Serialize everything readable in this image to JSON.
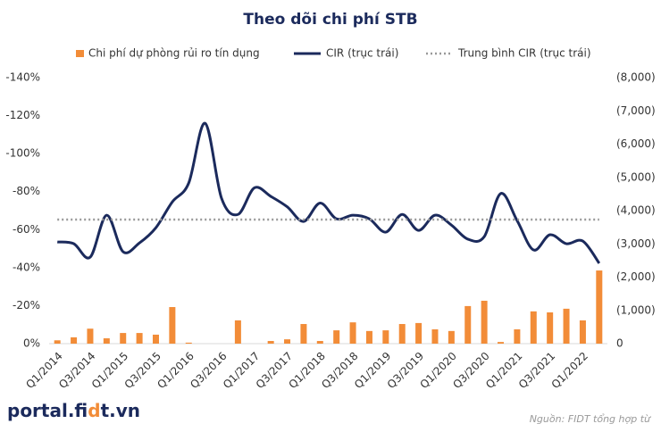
{
  "chart_data": {
    "type": "bar-line",
    "title": "Theo dõi chi phí STB",
    "source": "Nguồn: FIDT tổng hợp từ",
    "logo": [
      "portal.fi",
      "d",
      "t.vn"
    ],
    "categories": [
      "Q1/2014",
      null,
      "Q3/2014",
      null,
      "Q1/2015",
      null,
      "Q3/2015",
      null,
      "Q1/2016",
      null,
      "Q3/2016",
      null,
      "Q1/2017",
      null,
      "Q3/2017",
      null,
      "Q1/2018",
      null,
      "Q3/2018",
      null,
      "Q1/2019",
      null,
      "Q3/2019",
      null,
      "Q1/2020",
      null,
      "Q3/2020",
      null,
      "Q1/2021",
      null,
      "Q3/2021",
      null,
      "Q1/2022",
      null
    ],
    "series": [
      {
        "name": "Chi phí dự phòng rủi ro tín dụng",
        "type": "bar",
        "axis": "y2",
        "color": "#f28c38",
        "values": [
          -100,
          -190,
          -450,
          -160,
          -320,
          -320,
          -270,
          -1100,
          -30,
          0,
          0,
          -700,
          0,
          -80,
          -130,
          -590,
          -80,
          -400,
          -640,
          -380,
          -400,
          -590,
          -620,
          -430,
          -380,
          -1130,
          -1290,
          -50,
          -430,
          -970,
          -940,
          -1050,
          -700,
          -2200
        ]
      },
      {
        "name": "CIR (trục trái)",
        "type": "line",
        "axis": "y",
        "color": "#1b2a5c",
        "values": [
          -53.5,
          -52.6,
          -45.5,
          -67.6,
          -48.4,
          -53,
          -61,
          -74.6,
          -84.5,
          -116,
          -76.5,
          -68,
          -82,
          -77.5,
          -72,
          -64.3,
          -74,
          -65.7,
          -67.6,
          -65.7,
          -58.7,
          -68,
          -59.6,
          -67.6,
          -62.4,
          -55,
          -56.3,
          -79,
          -64.8,
          -49.3,
          -57.3,
          -52.6,
          -54,
          -42.3
        ]
      },
      {
        "name": "Trung bình CIR (trục trái)",
        "type": "average",
        "axis": "y",
        "color": "#999999",
        "value": -65.3
      }
    ],
    "ylim": [
      0,
      -140
    ],
    "yticks": [
      {
        "value": 0,
        "label": "0%"
      },
      {
        "value": -20,
        "label": "-20%"
      },
      {
        "value": -40,
        "label": "-40%"
      },
      {
        "value": -60,
        "label": "-60%"
      },
      {
        "value": -80,
        "label": "-80%"
      },
      {
        "value": -100,
        "label": "-100%"
      },
      {
        "value": -120,
        "label": "-120%"
      },
      {
        "value": -140,
        "label": "-140%"
      }
    ],
    "y2lim": [
      0,
      -8000
    ],
    "y2ticks": [
      0,
      {
        "value": -1000,
        "label": "(1,000)"
      },
      {
        "value": -2000,
        "label": "(2,000)"
      },
      {
        "value": -3000,
        "label": "(3,000)"
      },
      {
        "value": -4000,
        "label": "(4,000)"
      },
      {
        "value": -5000,
        "label": "(5,000)"
      },
      {
        "value": -6000,
        "label": "(6,000)"
      },
      {
        "value": -7000,
        "label": "(7,000)"
      },
      {
        "value": -8000,
        "label": "(8,000)"
      }
    ]
  }
}
